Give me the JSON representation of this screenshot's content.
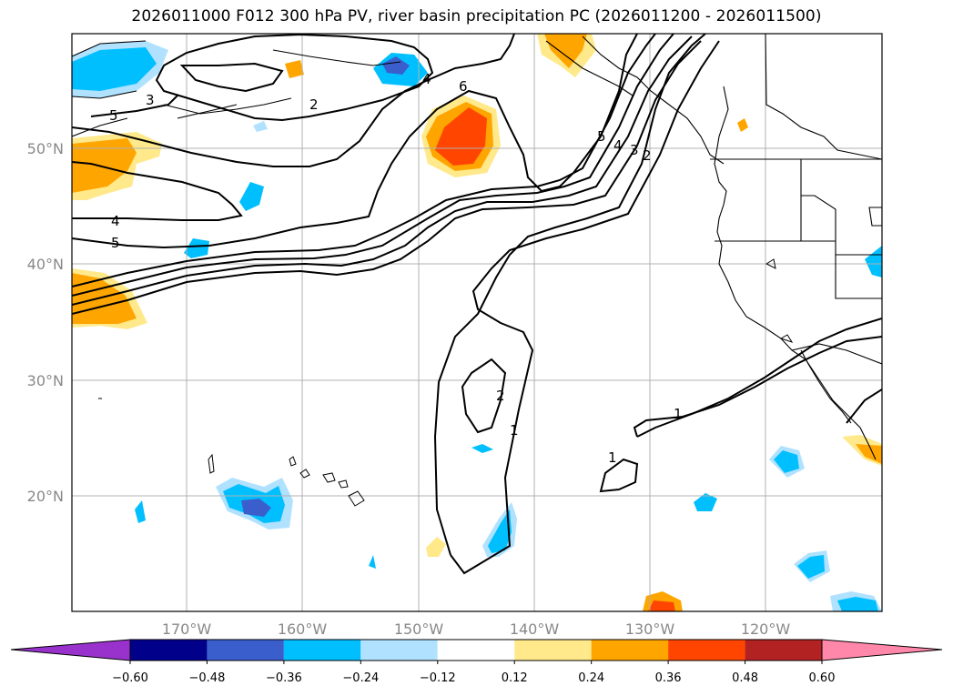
{
  "title": "2026011000 F012 300 hPa PV, river basin precipitation PC (2026011200 - 2026011500)",
  "map": {
    "lat_ticks": [
      "50°N",
      "40°N",
      "30°N",
      "20°N"
    ],
    "lon_ticks": [
      "170°W",
      "160°W",
      "150°W",
      "140°W",
      "130°W",
      "120°W"
    ],
    "extent": {
      "lon_min": -180,
      "lon_max": -110,
      "lat_min": 10,
      "lat_max": 60
    },
    "pv_contour_labels": [
      "1",
      "1",
      "1",
      "2",
      "2",
      "2",
      "3",
      "3",
      "4",
      "4",
      "4",
      "5",
      "5",
      "5",
      "6"
    ]
  },
  "colorbar": {
    "ticks": [
      "−0.60",
      "−0.48",
      "−0.36",
      "−0.24",
      "−0.12",
      "0.12",
      "0.24",
      "0.36",
      "0.48",
      "0.60"
    ],
    "colors": [
      "#9932cc",
      "#00008b",
      "#3a5fcd",
      "#00bfff",
      "#b0e2ff",
      "#ffffff",
      "#ffe98a",
      "#ffa500",
      "#ff4500",
      "#b22222",
      "#ff88aa"
    ]
  }
}
